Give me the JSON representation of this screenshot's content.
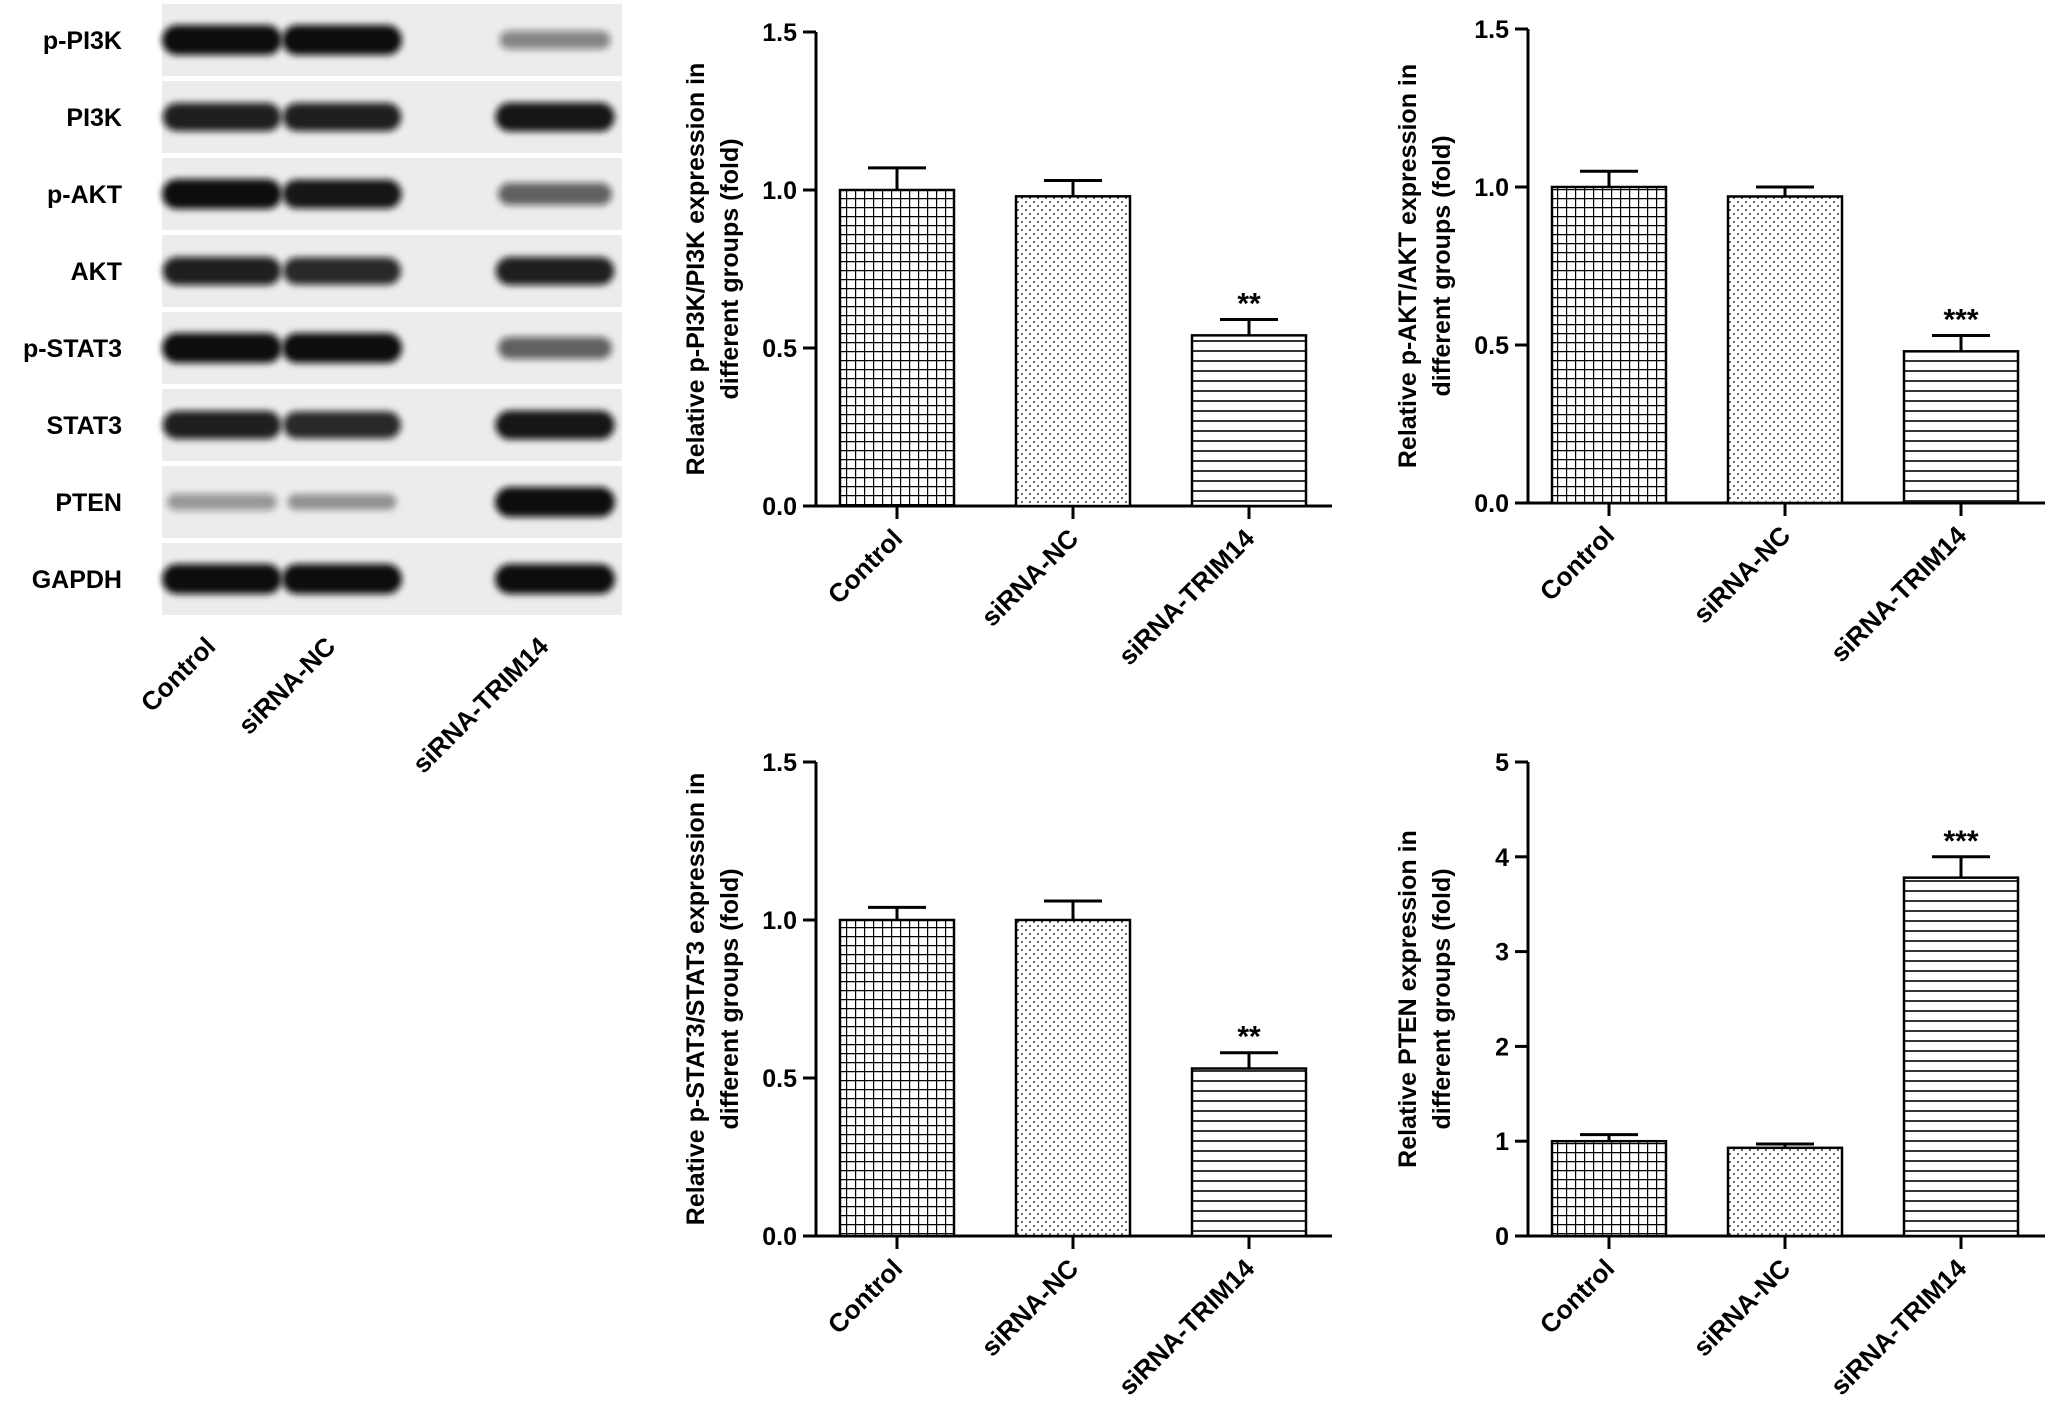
{
  "blot": {
    "proteins": [
      "p-PI3K",
      "PI3K",
      "p-AKT",
      "AKT",
      "p-STAT3",
      "STAT3",
      "PTEN",
      "GAPDH"
    ],
    "lanes": [
      "Control",
      "siRNA-NC",
      "siRNA-TRIM14"
    ],
    "band_intensity": [
      [
        1.0,
        1.0,
        0.35
      ],
      [
        0.9,
        0.9,
        0.95
      ],
      [
        1.0,
        0.95,
        0.55
      ],
      [
        0.9,
        0.85,
        0.9
      ],
      [
        1.0,
        1.0,
        0.55
      ],
      [
        0.9,
        0.85,
        0.95
      ],
      [
        0.25,
        0.22,
        1.0
      ],
      [
        1.0,
        1.0,
        1.0
      ]
    ]
  },
  "colors": {
    "bar_fill": "#ffffff",
    "bar_stroke": "#000000",
    "band": "#111111",
    "membrane": "#ececec"
  },
  "chart_data": [
    {
      "type": "bar",
      "categories": [
        "Control",
        "siRNA-NC",
        "siRNA-TRIM14"
      ],
      "values": [
        1.0,
        0.98,
        0.54
      ],
      "errors": [
        0.07,
        0.05,
        0.05
      ],
      "annotations": [
        "",
        "",
        "**"
      ],
      "patterns": [
        "grid",
        "dots",
        "hlines"
      ],
      "ylabel_lines": [
        "Relative p-PI3K/PI3K expression in",
        "different groups (fold)"
      ],
      "ylim": [
        0,
        1.5
      ],
      "yticks": [
        "0.0",
        "0.5",
        "1.0",
        "1.5"
      ]
    },
    {
      "type": "bar",
      "categories": [
        "Control",
        "siRNA-NC",
        "siRNA-TRIM14"
      ],
      "values": [
        1.0,
        0.97,
        0.48
      ],
      "errors": [
        0.05,
        0.03,
        0.05
      ],
      "annotations": [
        "",
        "",
        "***"
      ],
      "patterns": [
        "grid",
        "dots",
        "hlines"
      ],
      "ylabel_lines": [
        "Relative p-AKT/AKT expression in",
        "different groups (fold)"
      ],
      "ylim": [
        0,
        1.5
      ],
      "yticks": [
        "0.0",
        "0.5",
        "1.0",
        "1.5"
      ]
    },
    {
      "type": "bar",
      "categories": [
        "Control",
        "siRNA-NC",
        "siRNA-TRIM14"
      ],
      "values": [
        1.0,
        1.0,
        0.53
      ],
      "errors": [
        0.04,
        0.06,
        0.05
      ],
      "annotations": [
        "",
        "",
        "**"
      ],
      "patterns": [
        "grid",
        "dots",
        "hlines"
      ],
      "ylabel_lines": [
        "Relative p-STAT3/STAT3 expression in",
        "different groups (fold)"
      ],
      "ylim": [
        0,
        1.5
      ],
      "yticks": [
        "0.0",
        "0.5",
        "1.0",
        "1.5"
      ]
    },
    {
      "type": "bar",
      "categories": [
        "Control",
        "siRNA-NC",
        "siRNA-TRIM14"
      ],
      "values": [
        1.0,
        0.93,
        3.78
      ],
      "errors": [
        0.07,
        0.04,
        0.22
      ],
      "annotations": [
        "",
        "",
        "***"
      ],
      "patterns": [
        "grid",
        "dots",
        "hlines"
      ],
      "ylabel_lines": [
        "Relative PTEN expression in",
        "different groups (fold)"
      ],
      "ylim": [
        0,
        5
      ],
      "yticks": [
        "0",
        "1",
        "2",
        "3",
        "4",
        "5"
      ]
    }
  ]
}
